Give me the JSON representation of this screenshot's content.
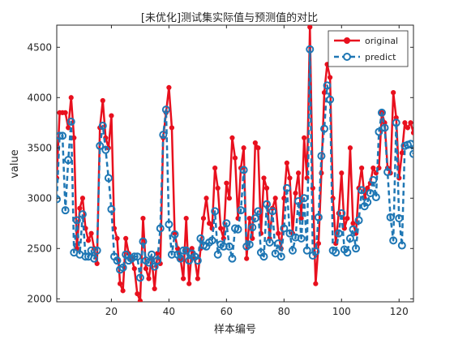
{
  "chart_data": {
    "type": "line",
    "title": "[未优化]测试集实际值与预测值的对比",
    "xlabel": "样本编号",
    "ylabel": "value",
    "xlim": [
      1,
      125
    ],
    "ylim": [
      1970,
      4720
    ],
    "xticks": [
      20,
      40,
      60,
      80,
      100,
      120
    ],
    "yticks": [
      2000,
      2500,
      3000,
      3500,
      4000,
      4500
    ],
    "grid": false,
    "legend_position": "top-right",
    "x": [
      1,
      2,
      3,
      4,
      5,
      6,
      7,
      8,
      9,
      10,
      11,
      12,
      13,
      14,
      15,
      16,
      17,
      18,
      19,
      20,
      21,
      22,
      23,
      24,
      25,
      26,
      27,
      28,
      29,
      30,
      31,
      32,
      33,
      34,
      35,
      36,
      37,
      38,
      39,
      40,
      41,
      42,
      43,
      44,
      45,
      46,
      47,
      48,
      49,
      50,
      51,
      52,
      53,
      54,
      55,
      56,
      57,
      58,
      59,
      60,
      61,
      62,
      63,
      64,
      65,
      66,
      67,
      68,
      69,
      70,
      71,
      72,
      73,
      74,
      75,
      76,
      77,
      78,
      79,
      80,
      81,
      82,
      83,
      84,
      85,
      86,
      87,
      88,
      89,
      90,
      91,
      92,
      93,
      94,
      95,
      96,
      97,
      98,
      99,
      100,
      101,
      102,
      103,
      104,
      105,
      106,
      107,
      108,
      109,
      110,
      111,
      112,
      113,
      114,
      115,
      116,
      117,
      118,
      119,
      120,
      121,
      122,
      123,
      124,
      125
    ],
    "series": [
      {
        "name": "original",
        "color": "#e8101e",
        "style": "solid-dot",
        "values": [
          3200,
          3850,
          3850,
          3850,
          3700,
          4000,
          3600,
          2500,
          2900,
          3000,
          2700,
          2580,
          2650,
          2500,
          2350,
          3700,
          3970,
          3600,
          3500,
          3820,
          2700,
          2600,
          2150,
          2080,
          2600,
          2450,
          2400,
          2300,
          2050,
          1980,
          2800,
          2300,
          2200,
          2400,
          2100,
          2450,
          2350,
          3600,
          3850,
          4100,
          3700,
          2650,
          2500,
          2400,
          2200,
          2800,
          2150,
          2500,
          2400,
          2200,
          2500,
          2800,
          3000,
          2750,
          2700,
          3300,
          3100,
          2700,
          2600,
          3150,
          3000,
          3600,
          3400,
          2800,
          3300,
          3500,
          2400,
          2800,
          2600,
          3550,
          3500,
          2650,
          3200,
          3100,
          2600,
          2900,
          3000,
          2650,
          2500,
          3000,
          3350,
          3200,
          2650,
          3050,
          3250,
          2800,
          3600,
          3200,
          4700,
          3100,
          2150,
          2550,
          3250,
          4050,
          4330,
          4200,
          3000,
          2550,
          2850,
          3250,
          2700,
          2800,
          3500,
          2750,
          2650,
          3100,
          3300,
          3000,
          3100,
          3150,
          3300,
          3250,
          3300,
          3850,
          3750,
          3300,
          3250,
          4050,
          3800,
          3200,
          3450,
          3750,
          3700,
          3750,
          3650
        ]
      },
      {
        "name": "predict",
        "color": "#1f77b4",
        "style": "dashed-circle",
        "values": [
          2990,
          3620,
          3620,
          2880,
          3380,
          3760,
          2460,
          2780,
          2440,
          2840,
          2420,
          2420,
          2480,
          2400,
          2480,
          3520,
          3720,
          3480,
          3200,
          2890,
          2420,
          2380,
          2290,
          2310,
          2440,
          2380,
          2400,
          2420,
          2420,
          2210,
          2570,
          2380,
          2360,
          2440,
          2320,
          2380,
          2700,
          3630,
          3880,
          2740,
          2440,
          2640,
          2440,
          2400,
          2480,
          2480,
          2380,
          2450,
          2420,
          2380,
          2600,
          2530,
          2520,
          2560,
          2580,
          2870,
          2440,
          2540,
          2520,
          2750,
          2520,
          2400,
          2700,
          2690,
          2880,
          3280,
          2520,
          2540,
          2710,
          2800,
          2870,
          2460,
          2420,
          2940,
          2560,
          2870,
          2450,
          2550,
          2420,
          2700,
          3100,
          2650,
          2480,
          2610,
          2970,
          2600,
          3000,
          2480,
          4480,
          2430,
          2470,
          2810,
          3420,
          3690,
          4120,
          3980,
          2480,
          2460,
          2650,
          2850,
          2490,
          2460,
          2600,
          2690,
          2500,
          2780,
          3080,
          2920,
          2960,
          3050,
          3180,
          3010,
          3660,
          3850,
          3700,
          3260,
          2810,
          2580,
          3750,
          2800,
          2530,
          3520,
          3530,
          3540,
          3440
        ]
      }
    ]
  }
}
